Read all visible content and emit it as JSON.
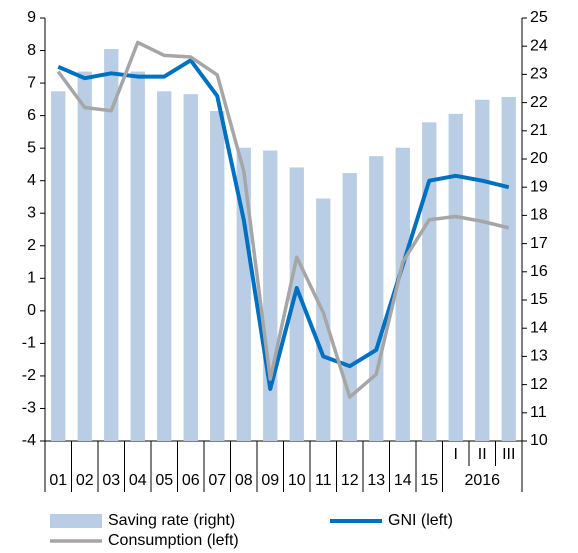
{
  "chart_data": {
    "type": "bar-line",
    "categories": [
      "01",
      "02",
      "03",
      "04",
      "05",
      "06",
      "07",
      "08",
      "09",
      "10",
      "11",
      "12",
      "13",
      "14",
      "15",
      "I",
      "II",
      "III"
    ],
    "category_group_label": "2016",
    "series": [
      {
        "name": "Saving rate (right)",
        "type": "bar",
        "axis": "y2",
        "color": "#b9cde5",
        "values": [
          22.4,
          23.1,
          23.9,
          23.1,
          22.4,
          22.3,
          21.7,
          20.4,
          20.3,
          19.7,
          18.6,
          19.5,
          20.1,
          20.4,
          21.3,
          21.6,
          22.1,
          22.2
        ]
      },
      {
        "name": "GNI (left)",
        "type": "line",
        "axis": "y",
        "color": "#0070c0",
        "values": [
          7.5,
          7.15,
          7.3,
          7.2,
          7.2,
          7.7,
          6.6,
          2.8,
          -2.4,
          0.7,
          -1.4,
          -1.7,
          -1.2,
          1.4,
          4.0,
          4.15,
          4.0,
          3.8
        ]
      },
      {
        "name": "Consumption (left)",
        "type": "line",
        "axis": "y",
        "color": "#a6a6a6",
        "values": [
          7.35,
          6.25,
          6.15,
          8.25,
          7.85,
          7.8,
          7.25,
          4.3,
          -2.1,
          1.65,
          -0.05,
          -2.65,
          -1.95,
          1.5,
          2.8,
          2.9,
          2.75,
          2.55
        ]
      }
    ],
    "ylim": [
      -4,
      9
    ],
    "yticks": [
      -4,
      -3,
      -2,
      -1,
      0,
      1,
      2,
      3,
      4,
      5,
      6,
      7,
      8,
      9
    ],
    "y2lim": [
      10,
      25
    ],
    "y2ticks": [
      10,
      11,
      12,
      13,
      14,
      15,
      16,
      17,
      18,
      19,
      20,
      21,
      22,
      23,
      24,
      25
    ],
    "grid": false
  }
}
